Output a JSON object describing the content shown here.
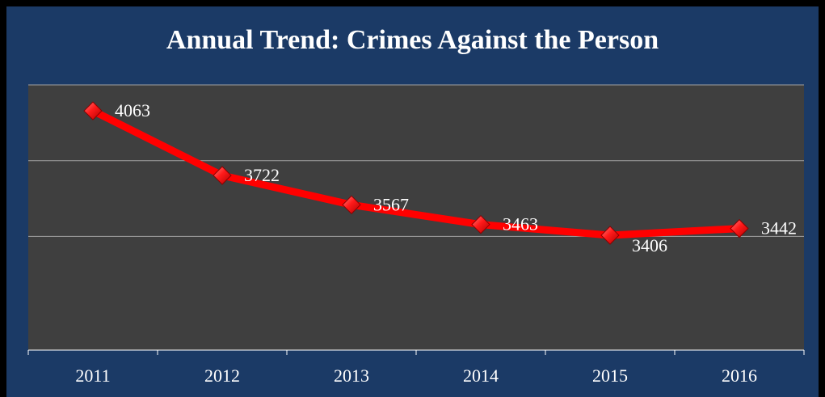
{
  "chart_data": {
    "type": "line",
    "title": "Annual Trend: Crimes Against the Person",
    "xlabel": "",
    "ylabel": "",
    "categories": [
      "2011",
      "2012",
      "2013",
      "2014",
      "2015",
      "2016"
    ],
    "series": [
      {
        "values": [
          4063,
          3722,
          3567,
          3463,
          3406,
          3442
        ],
        "color": "#ff0000"
      }
    ],
    "ylim": [
      2800,
      4200
    ],
    "y_gridlines": [
      3400,
      3800,
      4200
    ],
    "grid": true,
    "legend": "none",
    "data_labels": true,
    "colors": {
      "background": "#1b3a66",
      "plot_area": "#3f3f3f",
      "line": "#ff0000",
      "gridline": "#a0a0a0",
      "text": "#ffffff"
    }
  }
}
